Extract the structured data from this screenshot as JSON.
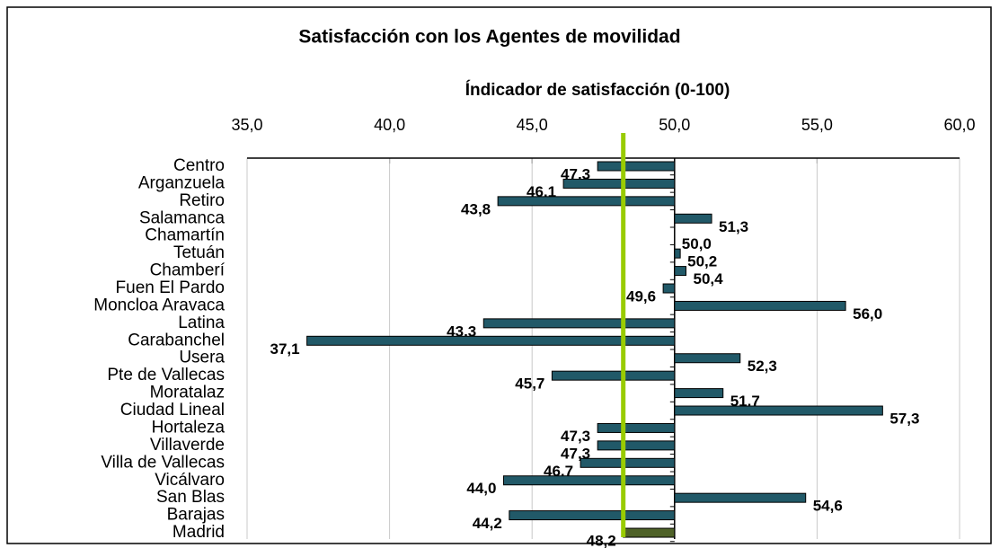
{
  "chart_data": {
    "type": "bar",
    "orientation": "horizontal",
    "title": "Satisfacción con los Agentes de movilidad",
    "x_label": "Índicador de satisfacción (0-100)",
    "categories": [
      "Centro",
      "Arganzuela",
      "Retiro",
      "Salamanca",
      "Chamartín",
      "Tetuán",
      "Chamberí",
      "Fuen El Pardo",
      "Moncloa Aravaca",
      "Latina",
      "Carabanchel",
      "Usera",
      "Pte de Vallecas",
      "Moratalaz",
      "Ciudad Lineal",
      "Hortaleza",
      "Villaverde",
      "Villa de Vallecas",
      "Vicálvaro",
      "San Blas",
      "Barajas",
      "Madrid"
    ],
    "values": [
      47.3,
      46.1,
      43.8,
      51.3,
      50.0,
      50.2,
      50.4,
      49.6,
      56.0,
      43.3,
      37.1,
      52.3,
      45.7,
      51.7,
      57.3,
      47.3,
      47.3,
      46.7,
      44.0,
      54.6,
      44.2,
      48.2
    ],
    "value_labels": [
      "47,3",
      "46,1",
      "43,8",
      "51,3",
      "50,0",
      "50,2",
      "50,4",
      "49,6",
      "56,0",
      "43,3",
      "37,1",
      "52,3",
      "45,7",
      "51,7",
      "57,3",
      "47,3",
      "47,3",
      "46,7",
      "44,0",
      "54,6",
      "44,2",
      "48,2"
    ],
    "colors": [
      "#215968",
      "#215968",
      "#215968",
      "#215968",
      "#215968",
      "#215968",
      "#215968",
      "#215968",
      "#215968",
      "#215968",
      "#215968",
      "#215968",
      "#215968",
      "#215968",
      "#215968",
      "#215968",
      "#215968",
      "#215968",
      "#215968",
      "#215968",
      "#215968",
      "#4f6228"
    ],
    "baseline": 50,
    "xlim": [
      35,
      60
    ],
    "xticks": [
      {
        "value": 35,
        "label": "35,0"
      },
      {
        "value": 40,
        "label": "40,0"
      },
      {
        "value": 45,
        "label": "45,0"
      },
      {
        "value": 50,
        "label": "50,0"
      },
      {
        "value": 55,
        "label": "55,0"
      },
      {
        "value": 60,
        "label": "60,0"
      }
    ],
    "grid": true,
    "reference_line": {
      "ref": 21,
      "color": "#99cc00"
    }
  }
}
